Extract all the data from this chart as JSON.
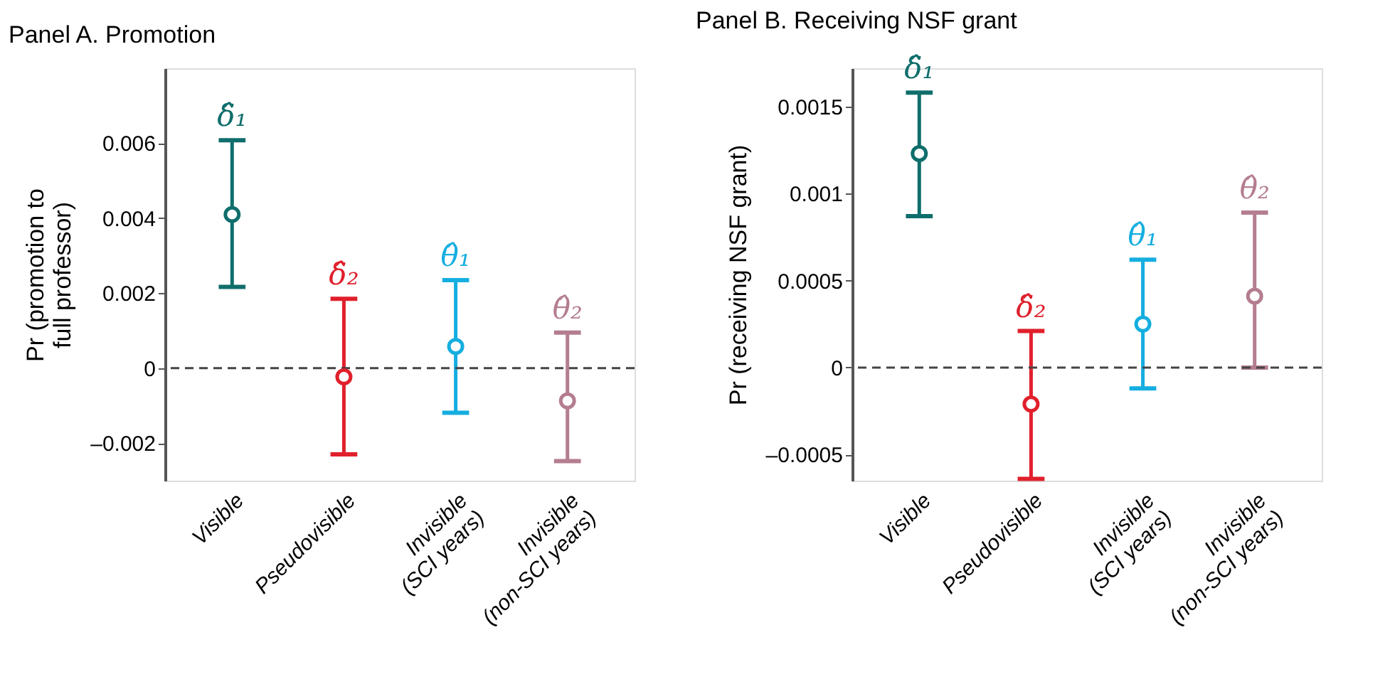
{
  "chart_data": [
    {
      "type": "scatter",
      "title": "Panel A. Promotion",
      "ylabel": "Pr (promotion to\nfull professor)",
      "categories": [
        "Visible",
        "Pseudovisible",
        "Invisible\n(SCI years)",
        "Invisible\n(non-SCI years)"
      ],
      "values": [
        0.0041,
        -0.00023,
        0.00058,
        -0.00087
      ],
      "errors": [
        [
          0.00217,
          0.00608
        ],
        [
          -0.0023,
          0.00185
        ],
        [
          -0.00119,
          0.00235
        ],
        [
          -0.00248,
          0.00095
        ]
      ],
      "colors": [
        "#0f6e6b",
        "#e0202c",
        "#15aee0",
        "#b47d90"
      ],
      "marker": "circle",
      "grid": false,
      "ylim": [
        -0.003,
        0.008
      ],
      "yticks": [
        {
          "value": -0.002,
          "label": "–0.002"
        },
        0,
        0.002,
        0.004,
        0.006
      ],
      "ref_lines": [
        {
          "axis": "y",
          "value": 0,
          "line_style": "dashed",
          "color": "#444444"
        }
      ],
      "annotations": [
        "δ̂₁",
        "δ̂₂",
        "θ̂₁",
        "θ̂₂"
      ]
    },
    {
      "type": "scatter",
      "title": "Panel B. Receiving NSF grant",
      "ylabel": "Pr (receiving NSF grant)",
      "categories": [
        "Visible",
        "Pseudovisible",
        "Invisible\n(SCI years)",
        "Invisible\n(non-SCI years)"
      ],
      "values": [
        0.00123,
        -0.00021,
        0.00025,
        0.00041
      ],
      "errors": [
        [
          0.00087,
          0.00158
        ],
        [
          -0.00064,
          0.00021
        ],
        [
          -0.00012,
          0.00062
        ],
        [
          0,
          0.00089
        ]
      ],
      "colors": [
        "#0f6e6b",
        "#e0202c",
        "#15aee0",
        "#b47d90"
      ],
      "marker": "circle",
      "grid": false,
      "ylim": [
        -0.00065,
        0.00172
      ],
      "yticks": [
        {
          "value": -0.0005,
          "label": "–0.0005"
        },
        0,
        0.0005,
        0.001,
        0.0015
      ],
      "ref_lines": [
        {
          "axis": "y",
          "value": 0,
          "line_style": "dashed",
          "color": "#444444"
        }
      ],
      "annotations": [
        "δ̂₁",
        "δ̂₂",
        "θ̂₁",
        "θ̂₂"
      ]
    }
  ]
}
